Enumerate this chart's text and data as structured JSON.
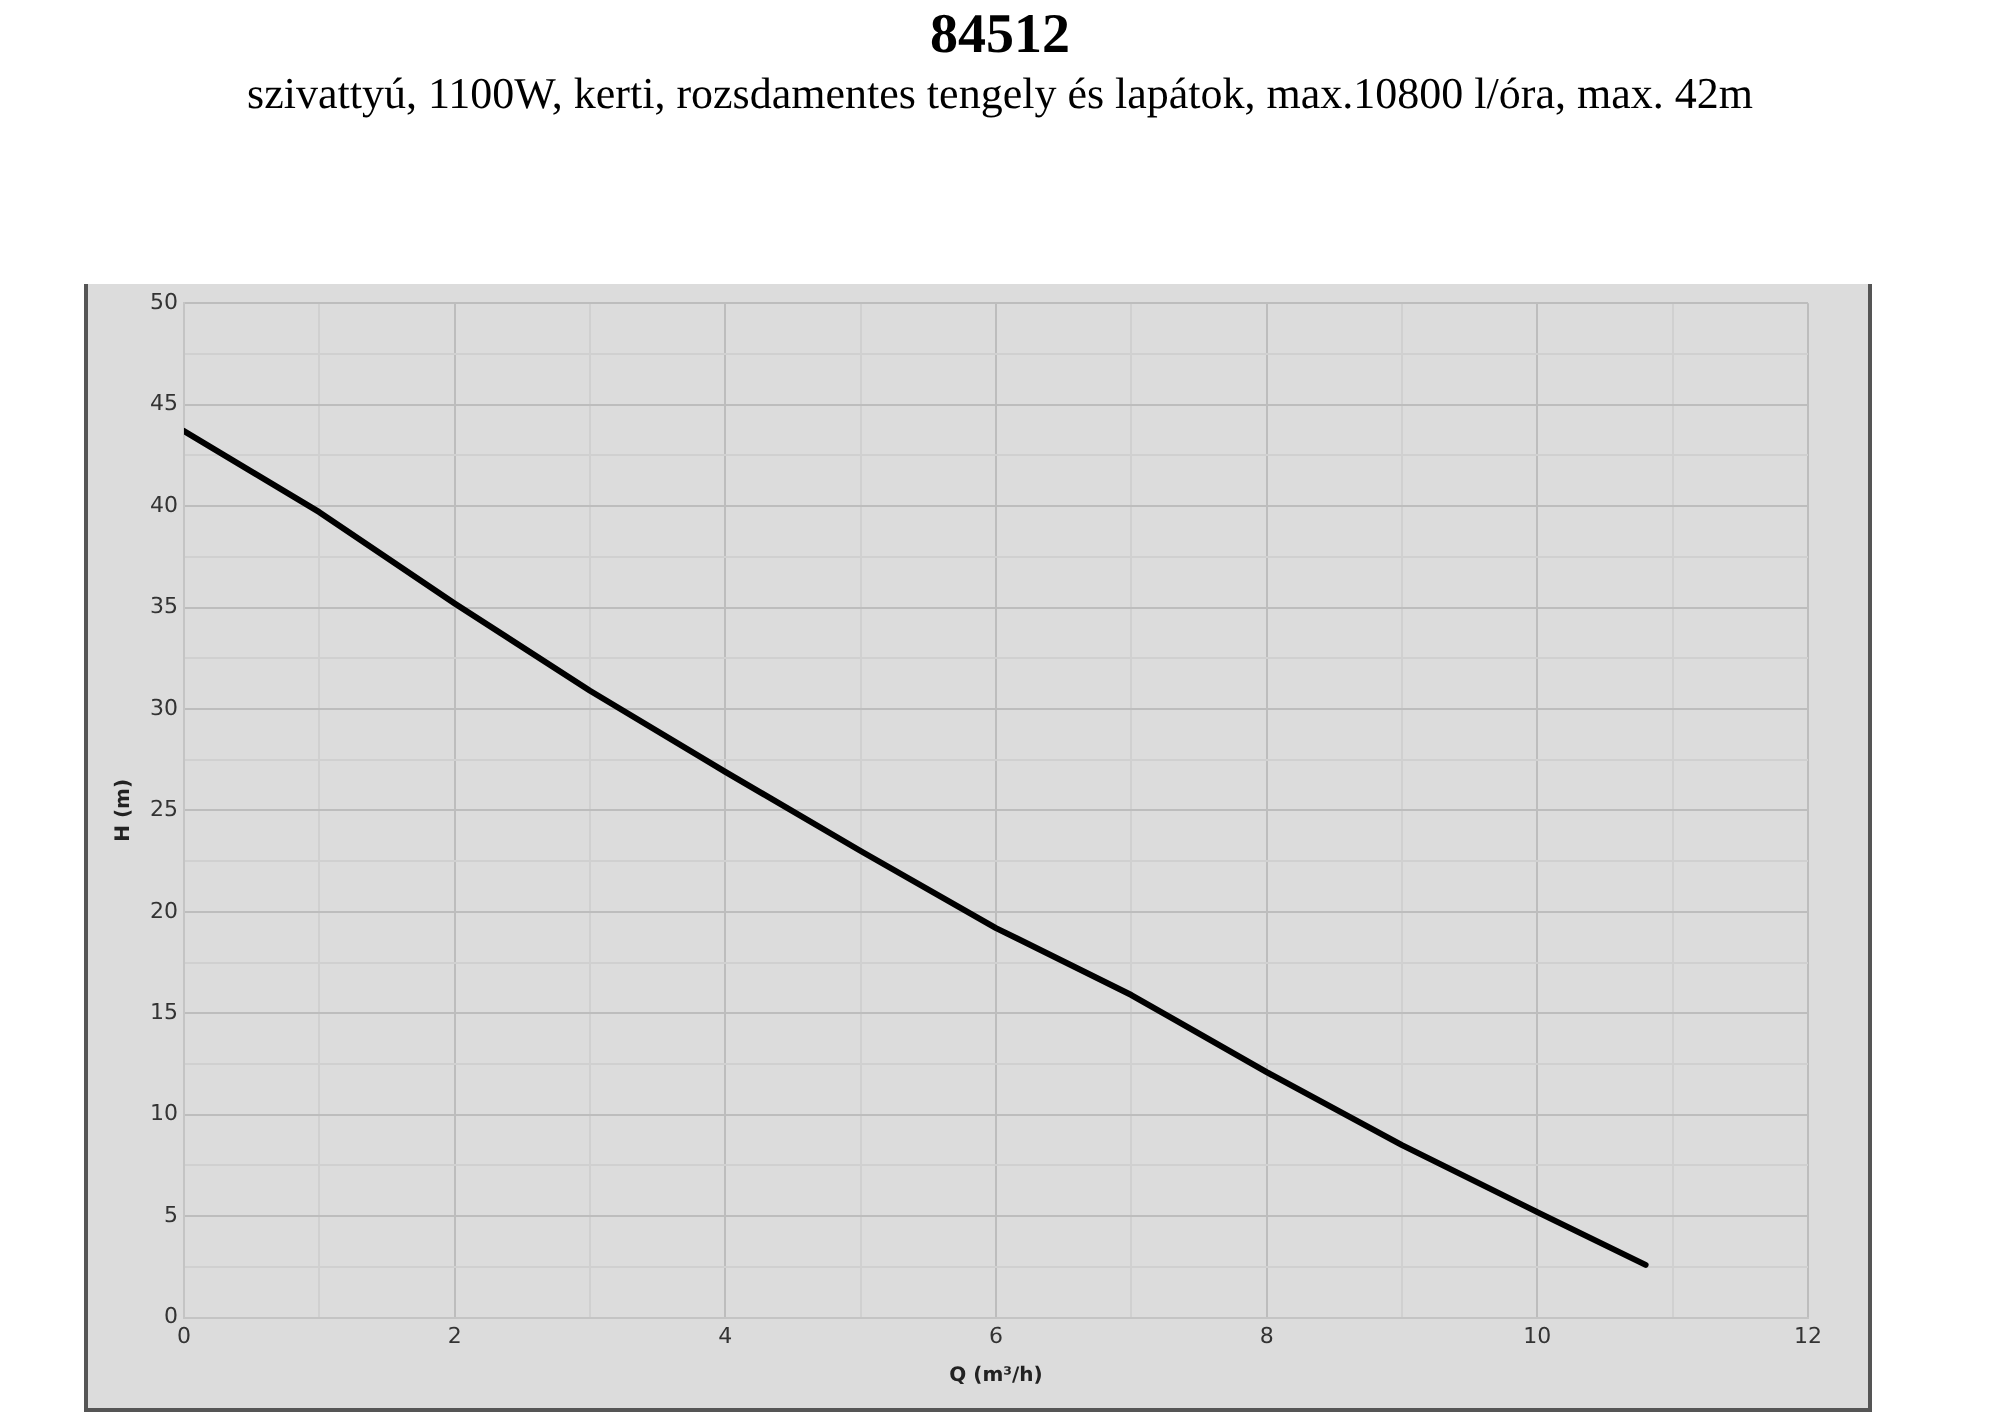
{
  "chart_data": {
    "type": "line",
    "title": "84512",
    "subtitle": "szivattyú, 1100W, kerti, rozsdamentes tengely és lapátok, max.10800 l/óra, max. 42m",
    "xlabel": "Q (m³/h)",
    "ylabel": "H (m)",
    "series": [
      {
        "color": "#000000",
        "x": [
          0,
          1,
          2,
          3,
          4,
          5,
          6,
          7,
          8,
          9,
          10,
          10.8
        ],
        "values": [
          43.7,
          39.7,
          35.2,
          30.9,
          26.9,
          23.0,
          19.2,
          15.9,
          12.1,
          8.5,
          5.2,
          2.6
        ]
      }
    ],
    "xlim": [
      0,
      12
    ],
    "xticks": [
      0,
      {
        "value": 1,
        "label": null
      },
      2,
      {
        "value": 3,
        "label": null
      },
      4,
      {
        "value": 5,
        "label": null
      },
      6,
      {
        "value": 7,
        "label": null
      },
      8,
      {
        "value": 9,
        "label": null
      },
      10,
      {
        "value": 11,
        "label": null
      },
      12
    ],
    "ylim": [
      0,
      50
    ],
    "yticks": [
      0,
      {
        "value": 2.5,
        "label": null
      },
      5,
      {
        "value": 7.5,
        "label": null
      },
      10,
      {
        "value": 12.5,
        "label": null
      },
      15,
      {
        "value": 17.5,
        "label": null
      },
      20,
      {
        "value": 22.5,
        "label": null
      },
      25,
      {
        "value": 27.5,
        "label": null
      },
      30,
      {
        "value": 32.5,
        "label": null
      },
      35,
      {
        "value": 37.5,
        "label": null
      },
      40,
      {
        "value": 42.5,
        "label": null
      },
      45,
      {
        "value": 47.5,
        "label": null
      },
      50
    ],
    "grid": true,
    "legend": false,
    "marker": "none",
    "line_style": "solid"
  }
}
